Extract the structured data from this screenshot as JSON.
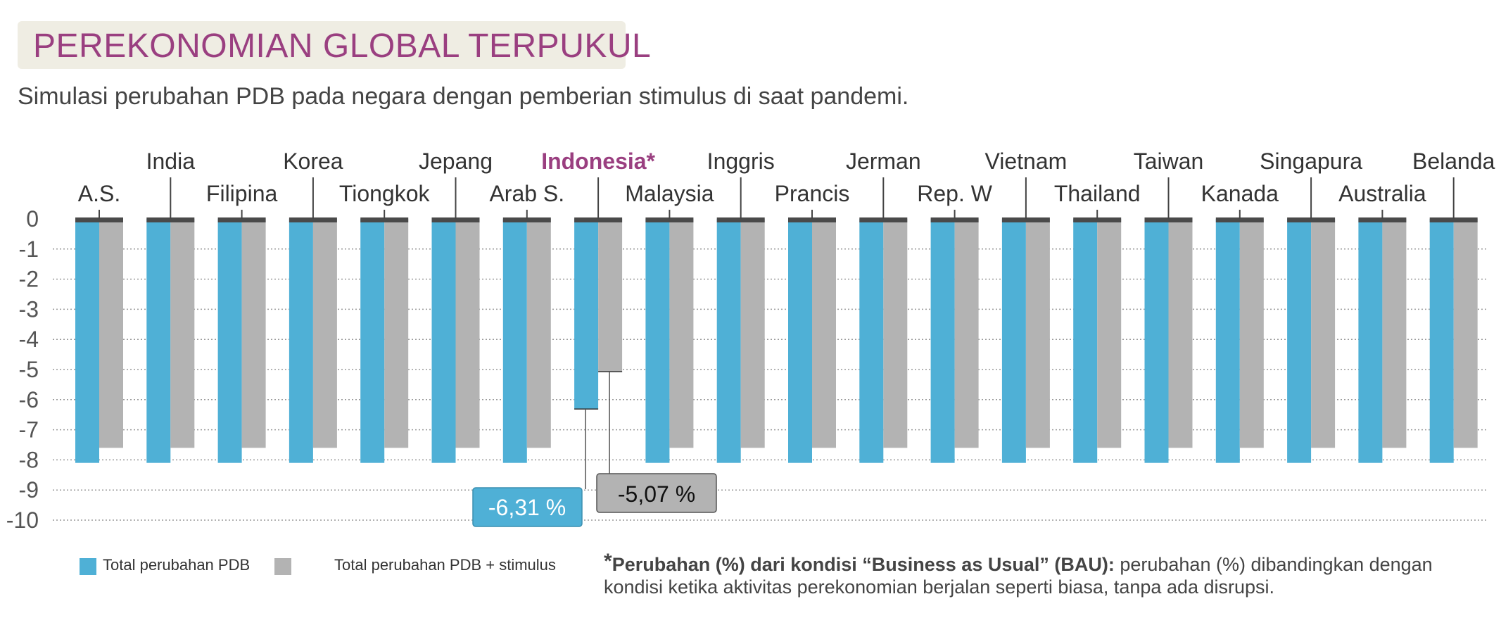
{
  "title": "PEREKONOMIAN GLOBAL TERPUKUL",
  "subtitle": "Simulasi perubahan PDB pada negara dengan pemberian stimulus di saat pandemi.",
  "colors": {
    "pdb": "#4fb0d6",
    "stimulus": "#b3b3b3",
    "highlight": "#9a3f80",
    "baseline": "#4a4a4a"
  },
  "chart_data": {
    "type": "bar",
    "categories": [
      "A.S.",
      "India",
      "Filipina",
      "Korea",
      "Tiongkok",
      "Jepang",
      "Arab S.",
      "Indonesia*",
      "Malaysia",
      "Inggris",
      "Prancis",
      "Jerman",
      "Rep. W",
      "Vietnam",
      "Thailand",
      "Taiwan",
      "Kanada",
      "Singapura",
      "Australia",
      "Belanda"
    ],
    "highlight_category": "Indonesia*",
    "series": [
      {
        "name": "Total perubahan PDB",
        "values": [
          -8.1,
          -8.1,
          -8.1,
          -8.1,
          -8.1,
          -8.1,
          -8.1,
          -6.31,
          -8.1,
          -8.1,
          -8.1,
          -8.1,
          -8.1,
          -8.1,
          -8.1,
          -8.1,
          -8.1,
          -8.1,
          -8.1,
          -8.1
        ]
      },
      {
        "name": "Total perubahan PDB + stimulus",
        "values": [
          -7.6,
          -7.6,
          -7.6,
          -7.6,
          -7.6,
          -7.6,
          -7.6,
          -5.07,
          -7.6,
          -7.6,
          -7.6,
          -7.6,
          -7.6,
          -7.6,
          -7.6,
          -7.6,
          -7.6,
          -7.6,
          -7.6,
          -7.6
        ]
      }
    ],
    "yticks": [
      "0",
      "-1",
      "-2",
      "-3",
      "-4",
      "-5",
      "-6",
      "-7",
      "-8",
      "-9",
      "-10"
    ],
    "ylim": [
      -10,
      0
    ],
    "grid": "horizontal dotted",
    "legend_position": "bottom-left",
    "annotations": [
      {
        "text": "-6,31 %",
        "category": "Indonesia*",
        "series": 0
      },
      {
        "text": "-5,07 %",
        "category": "Indonesia*",
        "series": 1
      }
    ]
  },
  "legend": {
    "pdb": "Total perubahan PDB",
    "stimulus": "Total perubahan PDB + stimulus"
  },
  "note": {
    "star": "*",
    "bold": "Perubahan (%) dari kondisi “Business as Usual” (BAU):",
    "text": " perubahan (%) dibandingkan dengan kondisi ketika aktivitas perekonomian berjalan seperti biasa, tanpa ada disrupsi."
  }
}
